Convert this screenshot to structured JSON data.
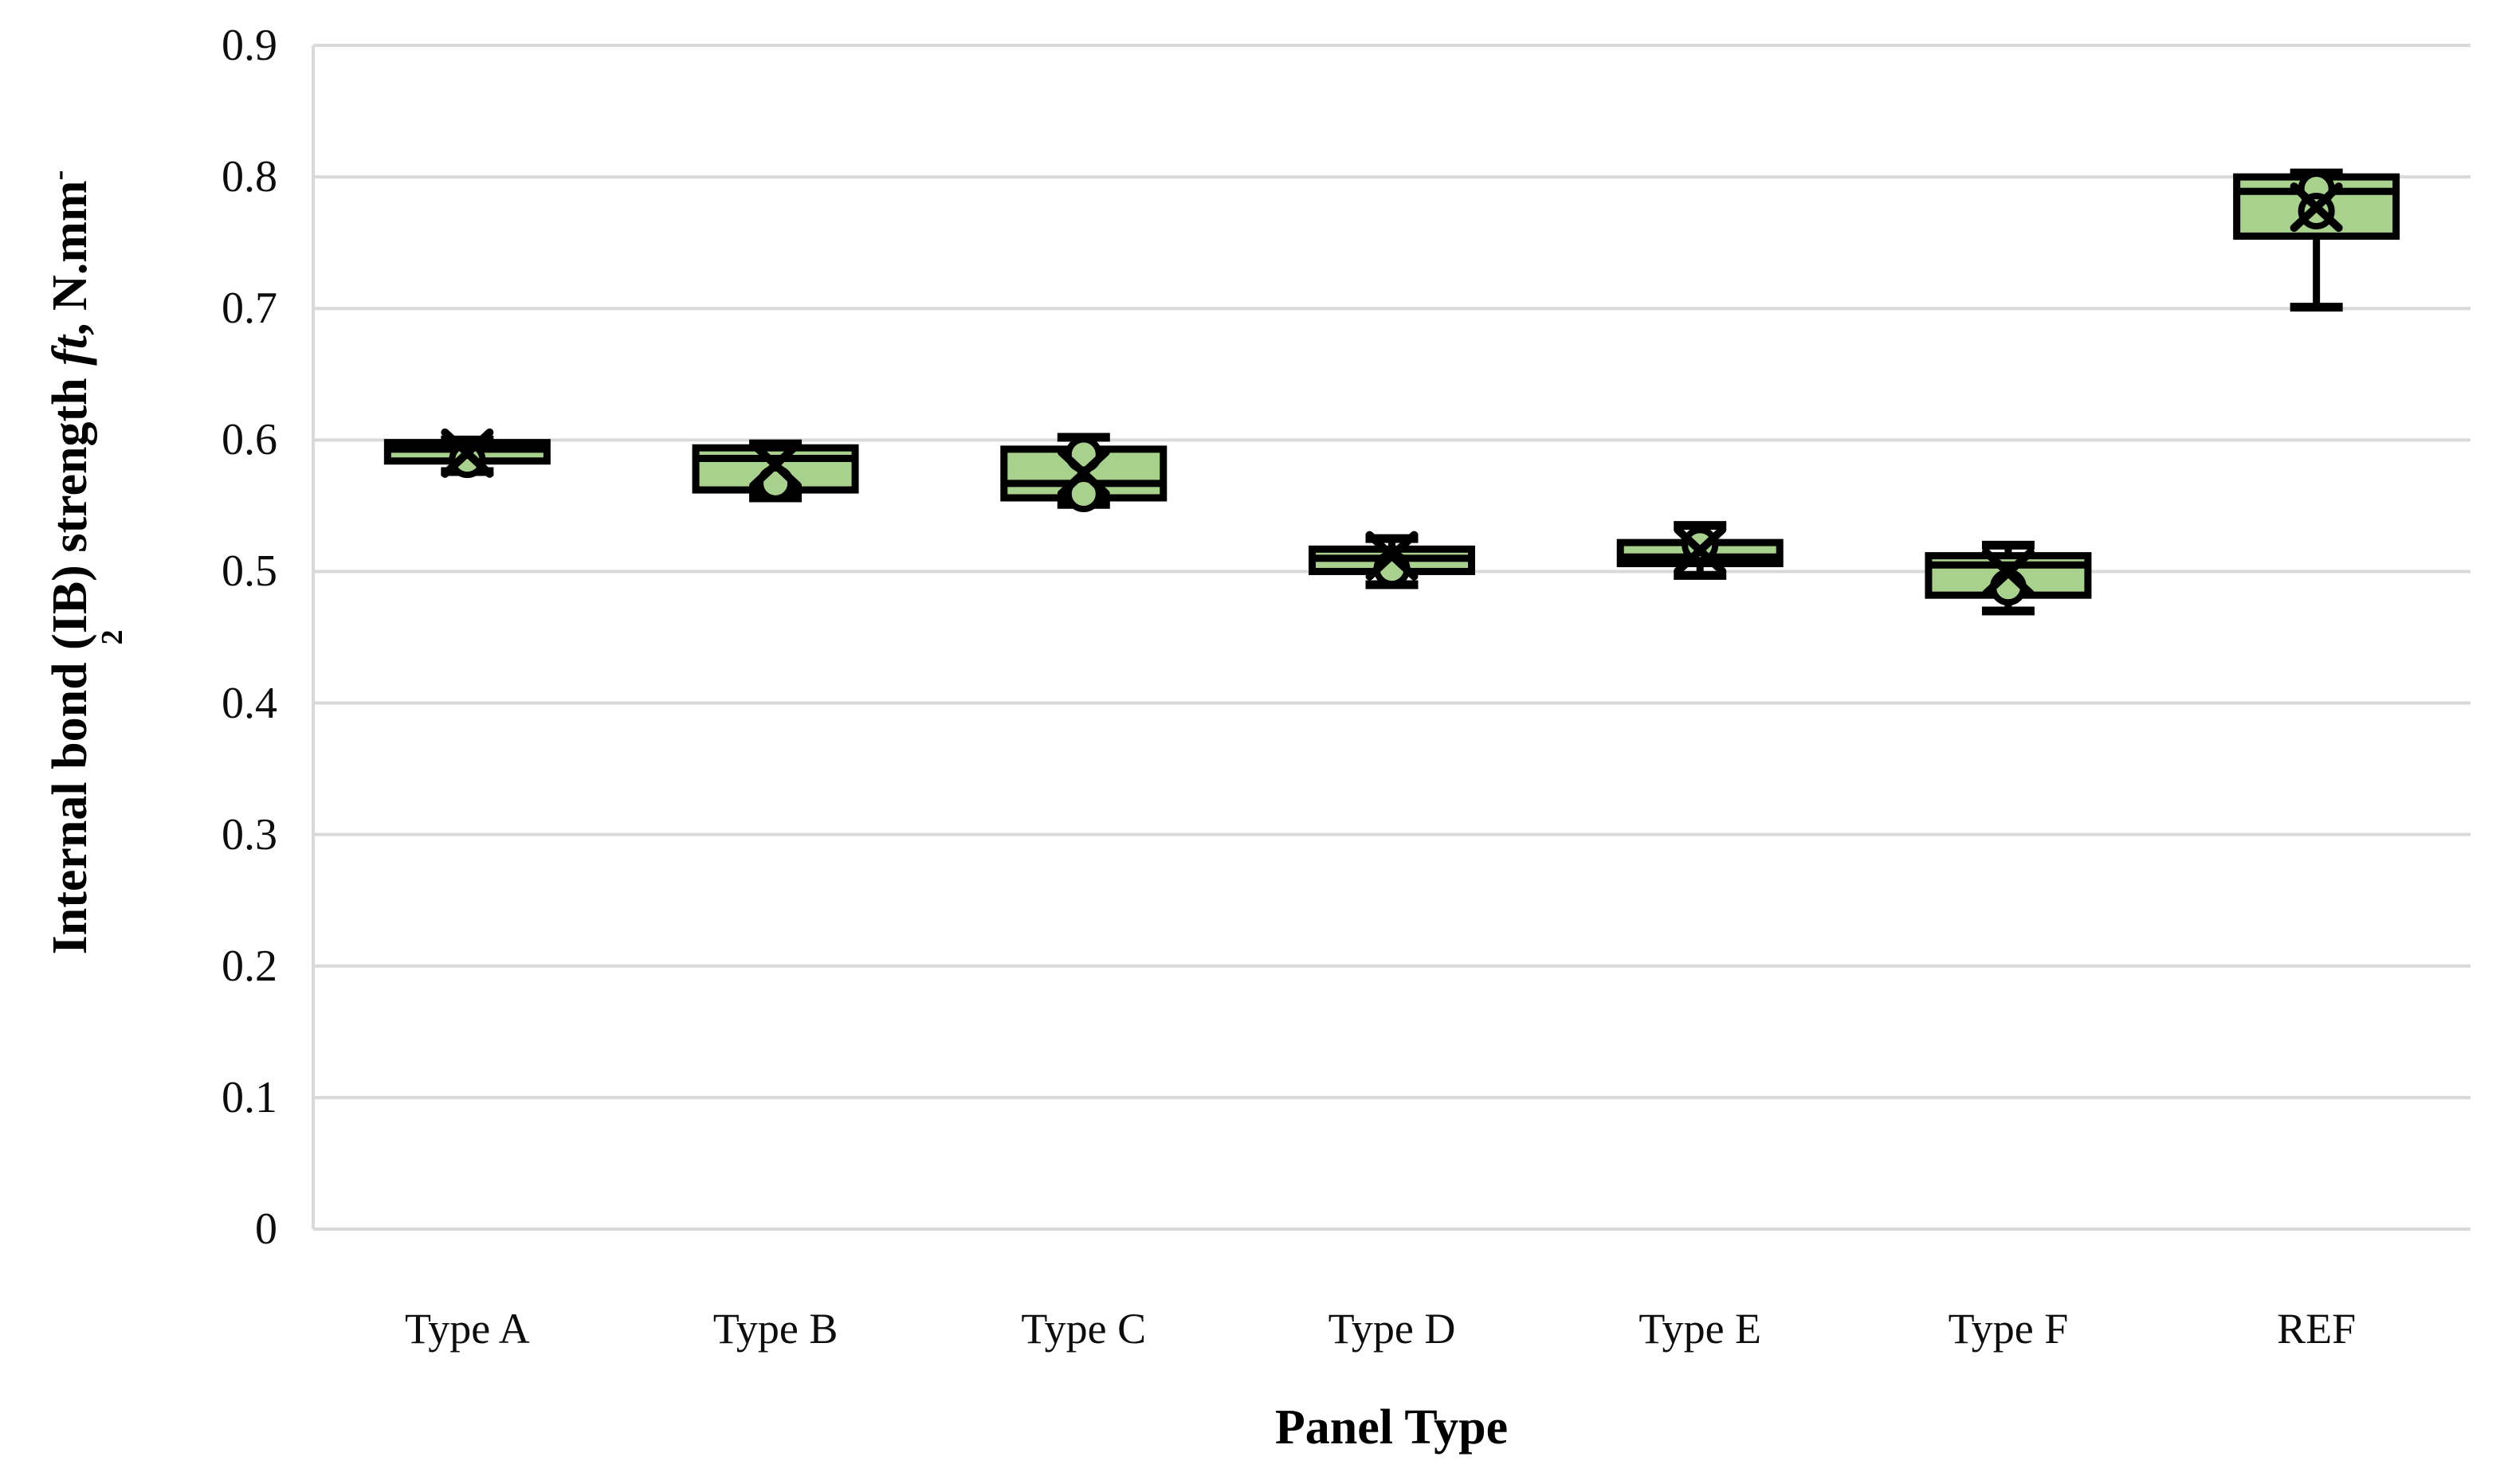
{
  "figure": {
    "background": "#ffffff",
    "y_axis_title": {
      "prefix": "Internal bond (IB) strength ",
      "italic": "ft",
      "suffix": ", N.mm",
      "superscript": "-",
      "wrapped_superscript_digit": "2",
      "full": "Internal bond (IB) strength ft, N.mm-2"
    },
    "x_axis_title": "Panel Type"
  },
  "chart_data": {
    "type": "box",
    "title": "",
    "xlabel": "Panel Type",
    "ylabel": "Internal bond (IB) strength ft, N.mm-2",
    "ylim": [
      0,
      0.9
    ],
    "ytick_step": 0.1,
    "ytick_labels": [
      "0",
      "0.1",
      "0.2",
      "0.3",
      "0.4",
      "0.5",
      "0.6",
      "0.7",
      "0.8",
      "0.9"
    ],
    "grid": "horizontal",
    "legend": "none",
    "categories": [
      "Type A",
      "Type B",
      "Type C",
      "Type D",
      "Type E",
      "Type F",
      "REF"
    ],
    "series": [
      {
        "label": "Type A",
        "min": 0.576,
        "q1": 0.584,
        "median": 0.593,
        "q3": 0.598,
        "max": 0.6,
        "mean": 0.59,
        "points": [
          0.585
        ]
      },
      {
        "label": "Type B",
        "min": 0.556,
        "q1": 0.562,
        "median": 0.586,
        "q3": 0.594,
        "max": 0.597,
        "mean": 0.581,
        "points": [
          0.567
        ]
      },
      {
        "label": "Type C",
        "min": 0.551,
        "q1": 0.556,
        "median": 0.567,
        "q3": 0.593,
        "max": 0.602,
        "mean": 0.575,
        "points": [
          0.589,
          0.559
        ]
      },
      {
        "label": "Type D",
        "min": 0.49,
        "q1": 0.5,
        "median": 0.51,
        "q3": 0.517,
        "max": 0.525,
        "mean": 0.512,
        "points": [
          0.502
        ]
      },
      {
        "label": "Type E",
        "min": 0.497,
        "q1": 0.506,
        "median": 0.511,
        "q3": 0.522,
        "max": 0.535,
        "mean": 0.516,
        "points": [
          0.52
        ]
      },
      {
        "label": "Type F",
        "min": 0.47,
        "q1": 0.482,
        "median": 0.505,
        "q3": 0.512,
        "max": 0.52,
        "mean": 0.499,
        "points": [
          0.488
        ]
      },
      {
        "label": "REF",
        "min": 0.701,
        "q1": 0.755,
        "median": 0.789,
        "q3": 0.8,
        "max": 0.803,
        "mean": 0.777,
        "points": [
          0.791,
          0.774
        ]
      }
    ],
    "colors": {
      "box_fill": "#a9d18e",
      "box_stroke": "#000000",
      "whisker": "#000000",
      "mean_marker": "#000000",
      "point_fill": "#a9d18e",
      "point_stroke": "#000000",
      "gridline": "#d9d9d9",
      "axis_line": "#d9d9d9",
      "text": "#0d0d0d"
    }
  }
}
